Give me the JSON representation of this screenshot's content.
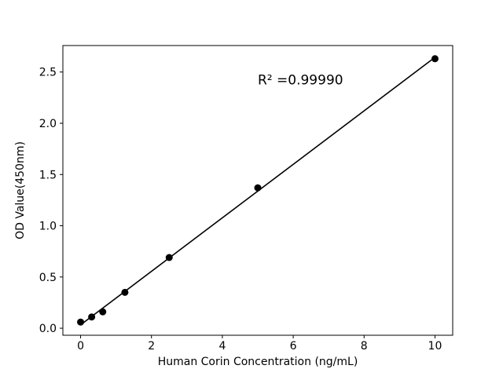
{
  "chart_data": {
    "type": "scatter",
    "title": "",
    "xlabel": "Human Corin Concentration (ng/mL)",
    "ylabel": "OD Value(450nm)",
    "x": [
      0,
      0.3125,
      0.625,
      1.25,
      2.5,
      5,
      10
    ],
    "y": [
      0.06,
      0.11,
      0.16,
      0.35,
      0.69,
      1.37,
      2.63
    ],
    "fit": "linear",
    "annotation": "R² =0.99990",
    "annotation_xy": [
      5.0,
      2.38
    ],
    "xlim": [
      -0.5,
      10.5
    ],
    "ylim": [
      -0.0685,
      2.7585
    ],
    "xticks": [
      0,
      2,
      4,
      6,
      8,
      10
    ],
    "xtick_labels": [
      "0",
      "2",
      "4",
      "6",
      "8",
      "10"
    ],
    "yticks": [
      0.0,
      0.5,
      1.0,
      1.5,
      2.0,
      2.5
    ],
    "ytick_labels": [
      "0.0",
      "0.5",
      "1.0",
      "1.5",
      "2.0",
      "2.5"
    ],
    "grid": false,
    "legend": "none",
    "marker_color": "#000000",
    "line_color": "#000000",
    "background_color": "#ffffff"
  }
}
